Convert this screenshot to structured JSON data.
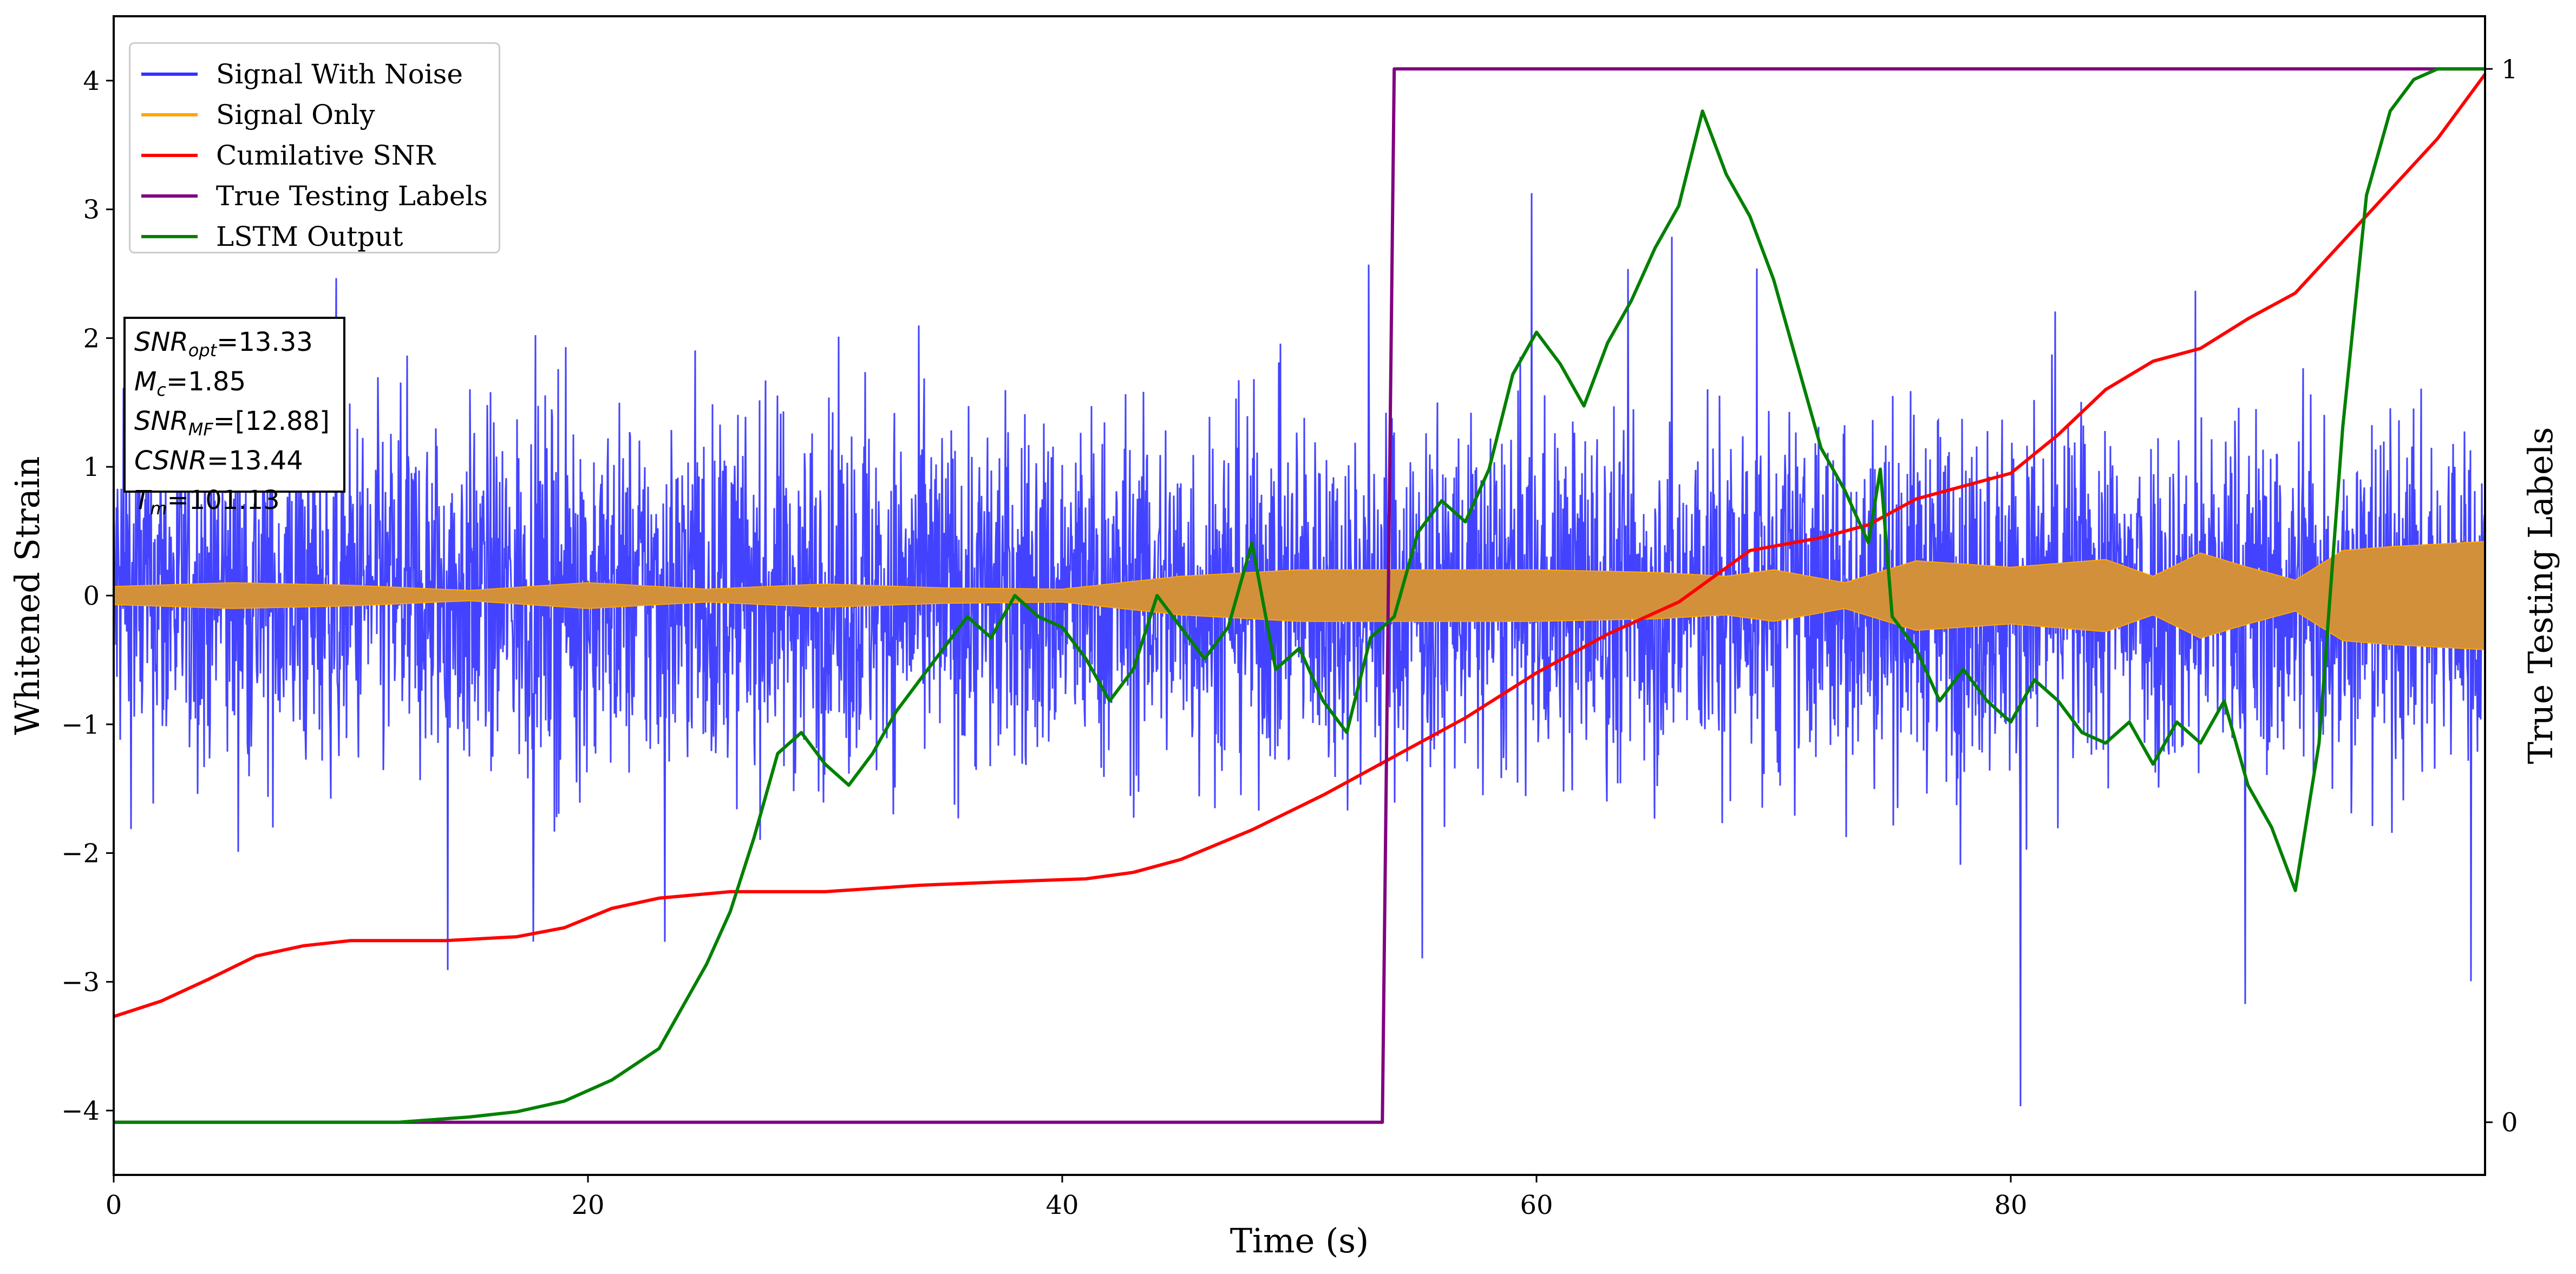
{
  "chart_data": {
    "type": "line",
    "xlabel": "Time (s)",
    "ylabel": "Whitened Strain",
    "ylabel_right": "True Testing Labels",
    "xlim": [
      0,
      100
    ],
    "ylim": [
      -4.5,
      4.5
    ],
    "ylim_right": [
      -0.05,
      1.05
    ],
    "x_ticks": [
      "0",
      "20",
      "40",
      "60",
      "80"
    ],
    "x_tick_values": [
      0,
      20,
      40,
      60,
      80
    ],
    "y_ticks": [
      "−4",
      "−3",
      "−2",
      "−1",
      "0",
      "1",
      "2",
      "3",
      "4"
    ],
    "y_tick_values": [
      -4,
      -3,
      -2,
      -1,
      0,
      1,
      2,
      3,
      4
    ],
    "y_right_ticks": [
      "0",
      "1"
    ],
    "y_right_tick_values": [
      0,
      1
    ],
    "grid": false,
    "legend_position": "top-left",
    "annotation": [
      {
        "var": "SNR",
        "sub": "opt",
        "text": "=13.33"
      },
      {
        "var": "M",
        "sub": "c",
        "text": "=1.85"
      },
      {
        "var": "SNR",
        "sub": "MF",
        "text": "=[12.88]"
      },
      {
        "var": "CSNR",
        "sub": "",
        "text": "=13.44"
      },
      {
        "var": "T",
        "sub": "m",
        "text": "=101.13"
      }
    ],
    "series": [
      {
        "name": "Signal With Noise",
        "color": "#3333ff",
        "axis": "left",
        "description_range": [
          -4.0,
          4.1
        ],
        "envelope_points": {
          "x": [
            0,
            100
          ],
          "typical_abs": 1.1
        }
      },
      {
        "name": "Signal Only",
        "color": "#ffa500",
        "fill_color": "#d2903a",
        "axis": "left",
        "envelope": {
          "x": [
            0,
            5,
            10,
            15,
            20,
            25,
            30,
            35,
            40,
            45,
            50,
            55,
            60,
            65,
            68,
            70,
            73,
            76,
            80,
            84,
            86,
            88,
            90,
            92,
            94,
            96,
            100
          ],
          "amp": [
            0.07,
            0.1,
            0.08,
            0.04,
            0.1,
            0.05,
            0.09,
            0.06,
            0.05,
            0.15,
            0.2,
            0.2,
            0.2,
            0.18,
            0.15,
            0.2,
            0.1,
            0.27,
            0.22,
            0.28,
            0.15,
            0.33,
            0.22,
            0.12,
            0.35,
            0.38,
            0.42
          ]
        }
      },
      {
        "name": "Cumilative SNR",
        "color": "#ff0000",
        "axis": "left",
        "x": [
          0,
          2,
          4,
          6,
          8,
          10,
          14,
          17,
          19,
          21,
          23,
          26,
          30,
          34,
          38,
          41,
          43,
          45,
          48,
          51,
          54,
          57,
          60,
          63,
          66,
          69,
          72,
          74,
          76,
          78,
          80,
          82,
          84,
          86,
          88,
          90,
          92,
          94,
          96,
          98,
          100
        ],
        "y": [
          -3.27,
          -3.15,
          -2.98,
          -2.8,
          -2.72,
          -2.68,
          -2.68,
          -2.65,
          -2.58,
          -2.43,
          -2.35,
          -2.3,
          -2.3,
          -2.25,
          -2.22,
          -2.2,
          -2.15,
          -2.05,
          -1.82,
          -1.55,
          -1.25,
          -0.95,
          -0.6,
          -0.3,
          -0.05,
          0.35,
          0.45,
          0.55,
          0.75,
          0.85,
          0.95,
          1.25,
          1.6,
          1.82,
          1.92,
          2.15,
          2.35,
          2.75,
          3.15,
          3.55,
          4.05
        ]
      },
      {
        "name": "True Testing Labels",
        "color": "#800080",
        "axis": "right",
        "x": [
          0,
          53.5,
          54.0,
          100
        ],
        "y": [
          0,
          0,
          1,
          1
        ]
      },
      {
        "name": "LSTM Output",
        "color": "#008000",
        "axis": "right",
        "x": [
          0,
          12,
          15,
          17,
          19,
          21,
          23,
          24,
          25,
          26,
          27,
          28,
          29,
          30,
          31,
          32,
          33,
          34,
          35,
          36,
          37,
          38,
          39,
          40,
          41,
          42,
          43,
          44,
          45,
          46,
          47,
          48,
          49,
          50,
          51,
          52,
          53,
          54,
          54.5,
          55,
          56,
          57,
          58,
          59,
          60,
          61,
          62,
          63,
          64,
          65,
          66,
          67,
          68,
          69,
          70,
          71,
          72,
          73,
          74,
          74.5,
          75,
          76,
          77,
          78,
          79,
          80,
          81,
          82,
          83,
          84,
          85,
          86,
          87,
          88,
          89,
          90,
          91,
          92,
          93,
          94,
          95,
          96,
          97,
          98,
          100
        ],
        "y": [
          0,
          0,
          0.005,
          0.01,
          0.02,
          0.04,
          0.07,
          0.11,
          0.15,
          0.2,
          0.27,
          0.35,
          0.37,
          0.34,
          0.32,
          0.35,
          0.39,
          0.42,
          0.45,
          0.48,
          0.46,
          0.5,
          0.48,
          0.47,
          0.44,
          0.4,
          0.43,
          0.5,
          0.47,
          0.44,
          0.47,
          0.55,
          0.43,
          0.45,
          0.4,
          0.37,
          0.46,
          0.48,
          0.52,
          0.56,
          0.59,
          0.57,
          0.62,
          0.71,
          0.75,
          0.72,
          0.68,
          0.74,
          0.78,
          0.83,
          0.87,
          0.96,
          0.9,
          0.86,
          0.8,
          0.72,
          0.64,
          0.6,
          0.55,
          0.62,
          0.48,
          0.45,
          0.4,
          0.43,
          0.4,
          0.38,
          0.42,
          0.4,
          0.37,
          0.36,
          0.38,
          0.34,
          0.38,
          0.36,
          0.4,
          0.32,
          0.28,
          0.22,
          0.36,
          0.66,
          0.88,
          0.96,
          0.99,
          1.0,
          1.0
        ]
      }
    ]
  },
  "legend": [
    {
      "label": "Signal With Noise",
      "color": "#3333ff"
    },
    {
      "label": "Signal Only",
      "color": "#ffa500"
    },
    {
      "label": "Cumilative SNR",
      "color": "#ff0000"
    },
    {
      "label": "True Testing Labels",
      "color": "#800080"
    },
    {
      "label": "LSTM Output",
      "color": "#008000"
    }
  ]
}
